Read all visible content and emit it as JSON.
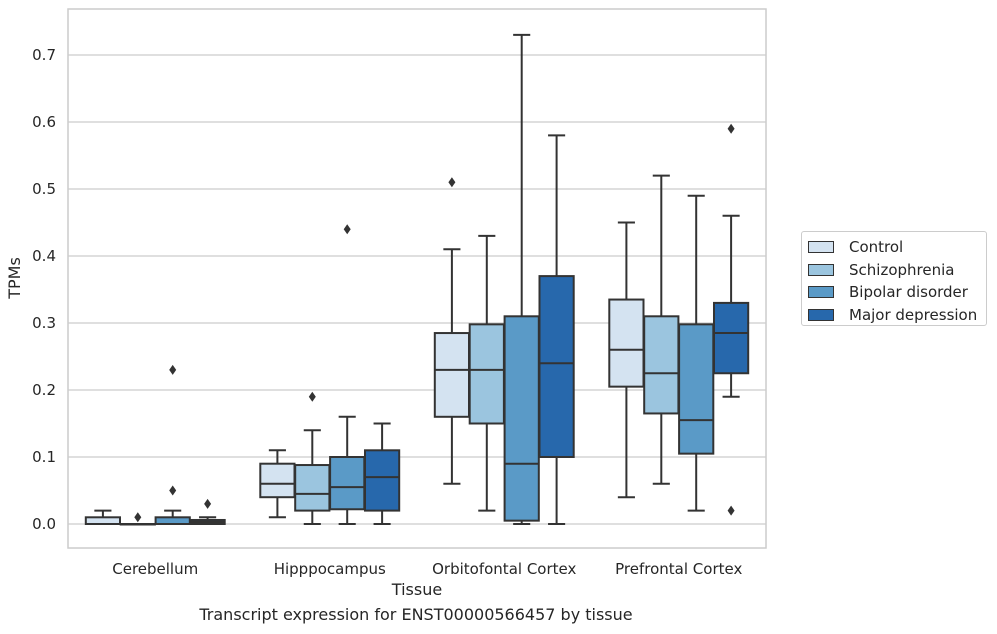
{
  "chart_data": {
    "type": "box",
    "xlabel": "Tissue",
    "ylabel": "TPMs",
    "ylim": [
      -0.035,
      0.77
    ],
    "yticks": [
      0.0,
      0.1,
      0.2,
      0.3,
      0.4,
      0.5,
      0.6,
      0.7
    ],
    "ytick_labels": [
      "0.0",
      "0.1",
      "0.2",
      "0.3",
      "0.4",
      "0.5",
      "0.6",
      "0.7"
    ],
    "grid": true,
    "legend_position": "right",
    "categories": [
      "Cerebellum",
      "Hipppocampus",
      "Orbitofontal Cortex",
      "Prefrontal Cortex"
    ],
    "series": [
      {
        "name": "Control",
        "color": "#d4e3f1",
        "boxes": [
          {
            "q1": 0.0,
            "median": 0.0,
            "q3": 0.01,
            "whisker_low": 0.0,
            "whisker_high": 0.02,
            "outliers": []
          },
          {
            "q1": 0.04,
            "median": 0.06,
            "q3": 0.09,
            "whisker_low": 0.01,
            "whisker_high": 0.11,
            "outliers": []
          },
          {
            "q1": 0.16,
            "median": 0.23,
            "q3": 0.285,
            "whisker_low": 0.06,
            "whisker_high": 0.41,
            "outliers": [
              0.51
            ]
          },
          {
            "q1": 0.205,
            "median": 0.26,
            "q3": 0.335,
            "whisker_low": 0.04,
            "whisker_high": 0.45,
            "outliers": []
          }
        ]
      },
      {
        "name": "Schizophrenia",
        "color": "#9bc5df",
        "boxes": [
          {
            "q1": 0.0,
            "median": 0.0,
            "q3": 0.0,
            "whisker_low": 0.0,
            "whisker_high": 0.0,
            "outliers": [
              0.01
            ]
          },
          {
            "q1": 0.02,
            "median": 0.045,
            "q3": 0.088,
            "whisker_low": 0.0,
            "whisker_high": 0.14,
            "outliers": [
              0.19
            ]
          },
          {
            "q1": 0.15,
            "median": 0.23,
            "q3": 0.298,
            "whisker_low": 0.02,
            "whisker_high": 0.43,
            "outliers": []
          },
          {
            "q1": 0.165,
            "median": 0.225,
            "q3": 0.31,
            "whisker_low": 0.06,
            "whisker_high": 0.52,
            "outliers": []
          }
        ]
      },
      {
        "name": "Bipolar disorder",
        "color": "#5a9ac7",
        "boxes": [
          {
            "q1": 0.0,
            "median": 0.0,
            "q3": 0.01,
            "whisker_low": 0.0,
            "whisker_high": 0.02,
            "outliers": [
              0.05,
              0.23
            ]
          },
          {
            "q1": 0.022,
            "median": 0.055,
            "q3": 0.1,
            "whisker_low": 0.0,
            "whisker_high": 0.16,
            "outliers": [
              0.44
            ]
          },
          {
            "q1": 0.005,
            "median": 0.09,
            "q3": 0.31,
            "whisker_low": 0.0,
            "whisker_high": 0.73,
            "outliers": []
          },
          {
            "q1": 0.105,
            "median": 0.155,
            "q3": 0.298,
            "whisker_low": 0.02,
            "whisker_high": 0.49,
            "outliers": []
          }
        ]
      },
      {
        "name": "Major depression",
        "color": "#2768ac",
        "boxes": [
          {
            "q1": 0.0,
            "median": 0.003,
            "q3": 0.006,
            "whisker_low": 0.0,
            "whisker_high": 0.01,
            "outliers": [
              0.03
            ]
          },
          {
            "q1": 0.02,
            "median": 0.07,
            "q3": 0.11,
            "whisker_low": 0.0,
            "whisker_high": 0.15,
            "outliers": []
          },
          {
            "q1": 0.1,
            "median": 0.24,
            "q3": 0.37,
            "whisker_low": 0.0,
            "whisker_high": 0.58,
            "outliers": []
          },
          {
            "q1": 0.225,
            "median": 0.285,
            "q3": 0.33,
            "whisker_low": 0.19,
            "whisker_high": 0.46,
            "outliers": [
              0.02,
              0.59
            ]
          }
        ]
      }
    ]
  },
  "caption": "Transcript expression for ENST00000566457 by tissue"
}
